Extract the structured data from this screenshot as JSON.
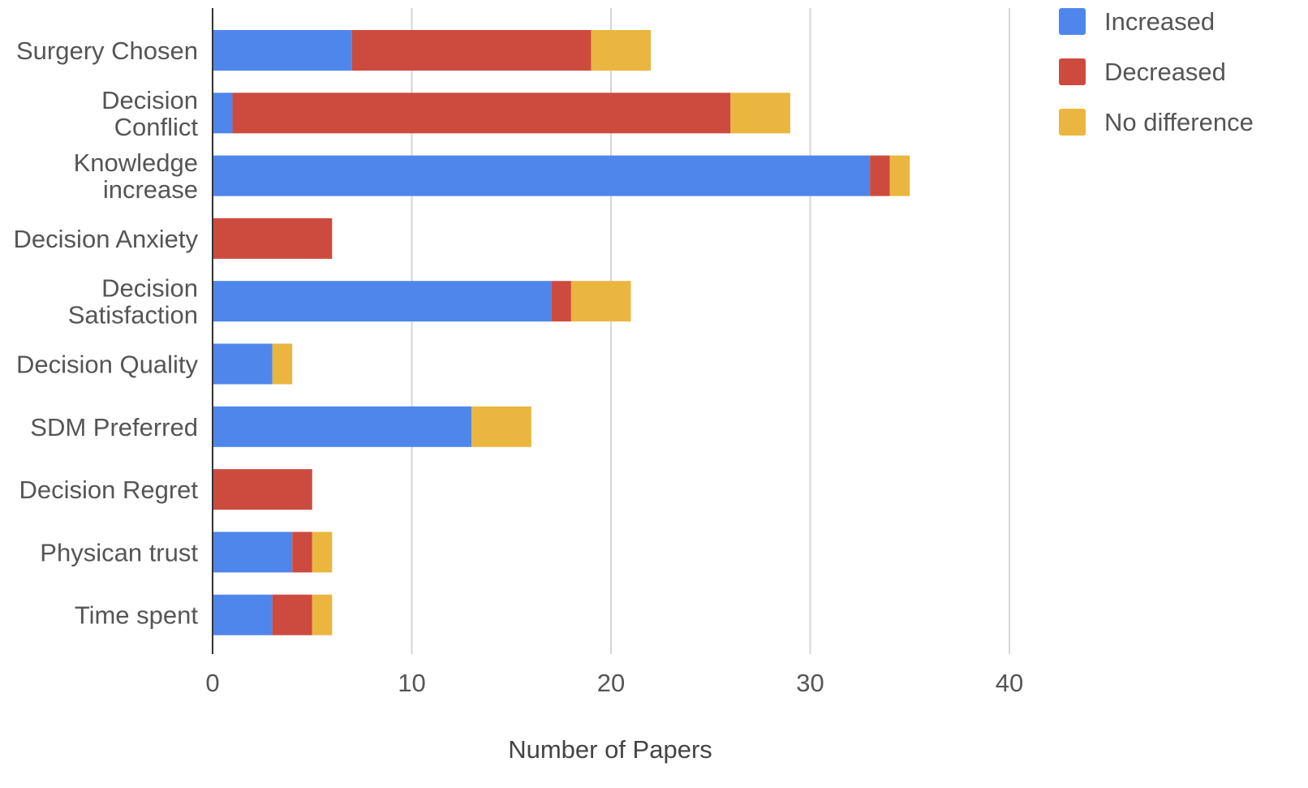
{
  "chart_data": {
    "type": "bar",
    "orientation": "horizontal",
    "stacked": true,
    "categories": [
      "Surgery Chosen",
      "Decision Conflict",
      "Knowledge increase",
      "Decision Anxiety",
      "Decision Satisfaction",
      "Decision Quality",
      "SDM Preferred",
      "Decision Regret",
      "Physican trust",
      "Time spent"
    ],
    "category_lines": [
      [
        "Surgery Chosen"
      ],
      [
        "Decision",
        "Conflict"
      ],
      [
        "Knowledge",
        "increase"
      ],
      [
        "Decision Anxiety"
      ],
      [
        "Decision",
        "Satisfaction"
      ],
      [
        "Decision Quality"
      ],
      [
        "SDM Preferred"
      ],
      [
        "Decision Regret"
      ],
      [
        "Physican trust"
      ],
      [
        "Time spent"
      ]
    ],
    "series": [
      {
        "name": "Increased",
        "color": "#4f86ec",
        "values": [
          7,
          1,
          33,
          0,
          17,
          3,
          13,
          0,
          4,
          3
        ]
      },
      {
        "name": "Decreased",
        "color": "#cd4b3e",
        "values": [
          12,
          25,
          1,
          6,
          1,
          0,
          0,
          5,
          1,
          2
        ]
      },
      {
        "name": "No difference",
        "color": "#eab63f",
        "values": [
          3,
          3,
          1,
          0,
          3,
          1,
          3,
          0,
          1,
          1
        ]
      }
    ],
    "xlabel": "Number of Papers",
    "ylabel": "",
    "xlim": [
      0,
      40
    ],
    "xticks": [
      "0",
      "10",
      "20",
      "30",
      "40"
    ],
    "grid": true,
    "legend": "top-right"
  }
}
